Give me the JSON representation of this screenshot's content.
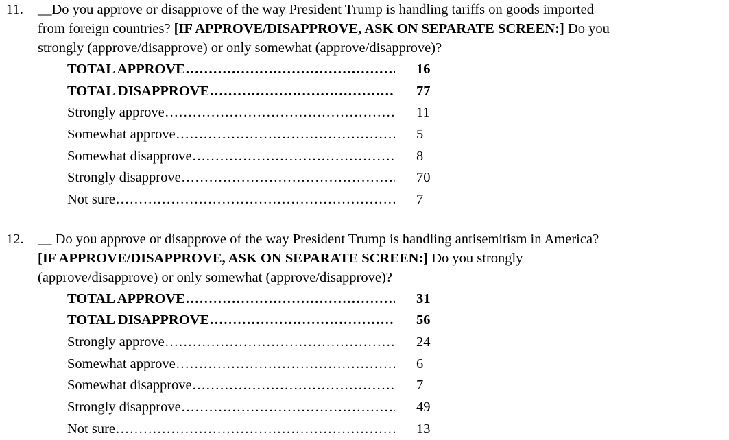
{
  "page": {
    "background_color": "#ffffff",
    "text_color": "#000000"
  },
  "questions": [
    {
      "number": "11.",
      "lines": [
        [
          {
            "text": "__Do you approve or disapprove of the way President Trump is handling tariffs on goods imported",
            "bold": false
          }
        ],
        [
          {
            "text": "from foreign countries? ",
            "bold": false
          },
          {
            "text": "[IF APPROVE/DISAPPROVE, ASK ON SEPARATE SCREEN:]",
            "bold": true
          },
          {
            "text": " Do you",
            "bold": false
          }
        ],
        [
          {
            "text": "strongly (approve/disapprove) or only somewhat (approve/disapprove)?",
            "bold": false
          }
        ]
      ],
      "rows": [
        {
          "label": "TOTAL APPROVE",
          "value": "16",
          "bold": true
        },
        {
          "label": "TOTAL DISAPPROVE",
          "value": "77",
          "bold": true
        },
        {
          "label": "Strongly approve",
          "value": "11",
          "bold": false
        },
        {
          "label": "Somewhat approve",
          "value": "5",
          "bold": false
        },
        {
          "label": "Somewhat disapprove",
          "value": "8",
          "bold": false
        },
        {
          "label": "Strongly disapprove",
          "value": "70",
          "bold": false
        },
        {
          "label": "Not sure",
          "value": "7",
          "bold": false
        }
      ]
    },
    {
      "number": "12.",
      "lines": [
        [
          {
            "text": "__ Do you approve or disapprove of the way President Trump is handling antisemitism in America?",
            "bold": false
          }
        ],
        [
          {
            "text": "[IF APPROVE/DISAPPROVE, ASK ON SEPARATE SCREEN:]",
            "bold": true
          },
          {
            "text": " Do you strongly",
            "bold": false
          }
        ],
        [
          {
            "text": "(approve/disapprove) or only somewhat (approve/disapprove)?",
            "bold": false
          }
        ]
      ],
      "rows": [
        {
          "label": "TOTAL APPROVE",
          "value": "31",
          "bold": true
        },
        {
          "label": "TOTAL DISAPPROVE",
          "value": "56",
          "bold": true
        },
        {
          "label": "Strongly approve",
          "value": "24",
          "bold": false
        },
        {
          "label": "Somewhat approve",
          "value": "6",
          "bold": false
        },
        {
          "label": "Somewhat disapprove",
          "value": "7",
          "bold": false
        },
        {
          "label": "Strongly disapprove",
          "value": "49",
          "bold": false
        },
        {
          "label": "Not sure",
          "value": "13",
          "bold": false
        }
      ]
    }
  ]
}
